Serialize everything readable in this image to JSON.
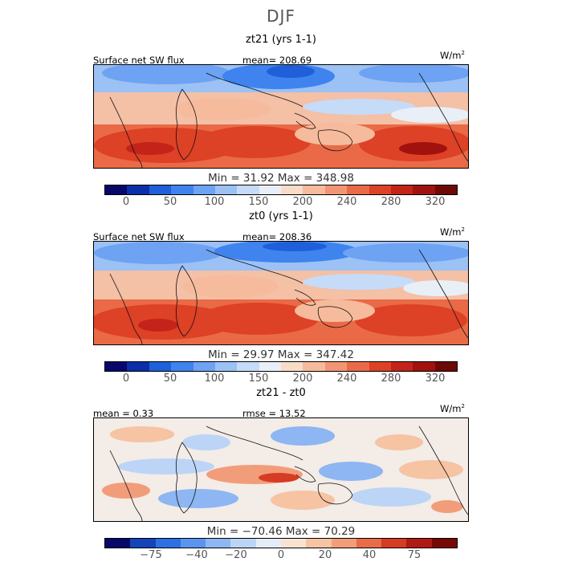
{
  "title": "DJF",
  "panels": [
    {
      "title": "zt21 (yrs 1-1)",
      "left_label": "Surface net SW flux",
      "center_label": "mean= 208.69",
      "units": "W/m",
      "units_sup": "2",
      "minmax": "Min =  31.92  Max =  348.98",
      "tick_labels": [
        "0",
        "50",
        "100",
        "150",
        "200",
        "240",
        "280",
        "320"
      ]
    },
    {
      "title": "zt0 (yrs 1-1)",
      "left_label": "Surface net SW flux",
      "center_label": "mean= 208.36",
      "units": "W/m",
      "units_sup": "2",
      "minmax": "Min =  29.97  Max =  347.42",
      "tick_labels": [
        "0",
        "50",
        "100",
        "150",
        "200",
        "240",
        "280",
        "320"
      ]
    },
    {
      "title": "zt21 - zt0",
      "left_label": "mean =  0.33",
      "center_label": "rmse =  13.52",
      "units": "W/m",
      "units_sup": "2",
      "minmax": "Min = −70.46  Max =  70.29",
      "tick_labels": [
        "−75",
        "−40",
        "−20",
        "0",
        "20",
        "40",
        "75"
      ]
    }
  ],
  "colors": {
    "abs_scale": [
      "#08086b",
      "#0b2fa8",
      "#1f5fd9",
      "#3f83ee",
      "#6ea2f2",
      "#9cc1f5",
      "#c6dbf7",
      "#e9eff7",
      "#f8dcc9",
      "#f6bb9c",
      "#f29575",
      "#ea6a47",
      "#dd4126",
      "#c4231a",
      "#a1120f",
      "#6d0a06"
    ],
    "diff_scale": [
      "#08086b",
      "#1444b8",
      "#2d70e3",
      "#5b94ef",
      "#8db6f3",
      "#bcd4f6",
      "#e3ecf7",
      "#f8e3d3",
      "#f6c3a3",
      "#f29d7a",
      "#e86c47",
      "#d53c23",
      "#b01a14",
      "#780806"
    ]
  },
  "chart_data": [
    {
      "type": "heatmap",
      "title": "zt21 (yrs 1-1)",
      "variable": "Surface net SW flux",
      "units": "W/m^2",
      "mean": 208.69,
      "min": 31.92,
      "max": 348.98,
      "colorbar_ticks": [
        0,
        50,
        100,
        150,
        200,
        240,
        280,
        320
      ]
    },
    {
      "type": "heatmap",
      "title": "zt0 (yrs 1-1)",
      "variable": "Surface net SW flux",
      "units": "W/m^2",
      "mean": 208.36,
      "min": 29.97,
      "max": 347.42,
      "colorbar_ticks": [
        0,
        50,
        100,
        150,
        200,
        240,
        280,
        320
      ]
    },
    {
      "type": "heatmap",
      "title": "zt21 - zt0",
      "units": "W/m^2",
      "mean": 0.33,
      "rmse": 13.52,
      "min": -70.46,
      "max": 70.29,
      "colorbar_ticks": [
        -75,
        -40,
        -20,
        0,
        20,
        40,
        75
      ]
    }
  ]
}
